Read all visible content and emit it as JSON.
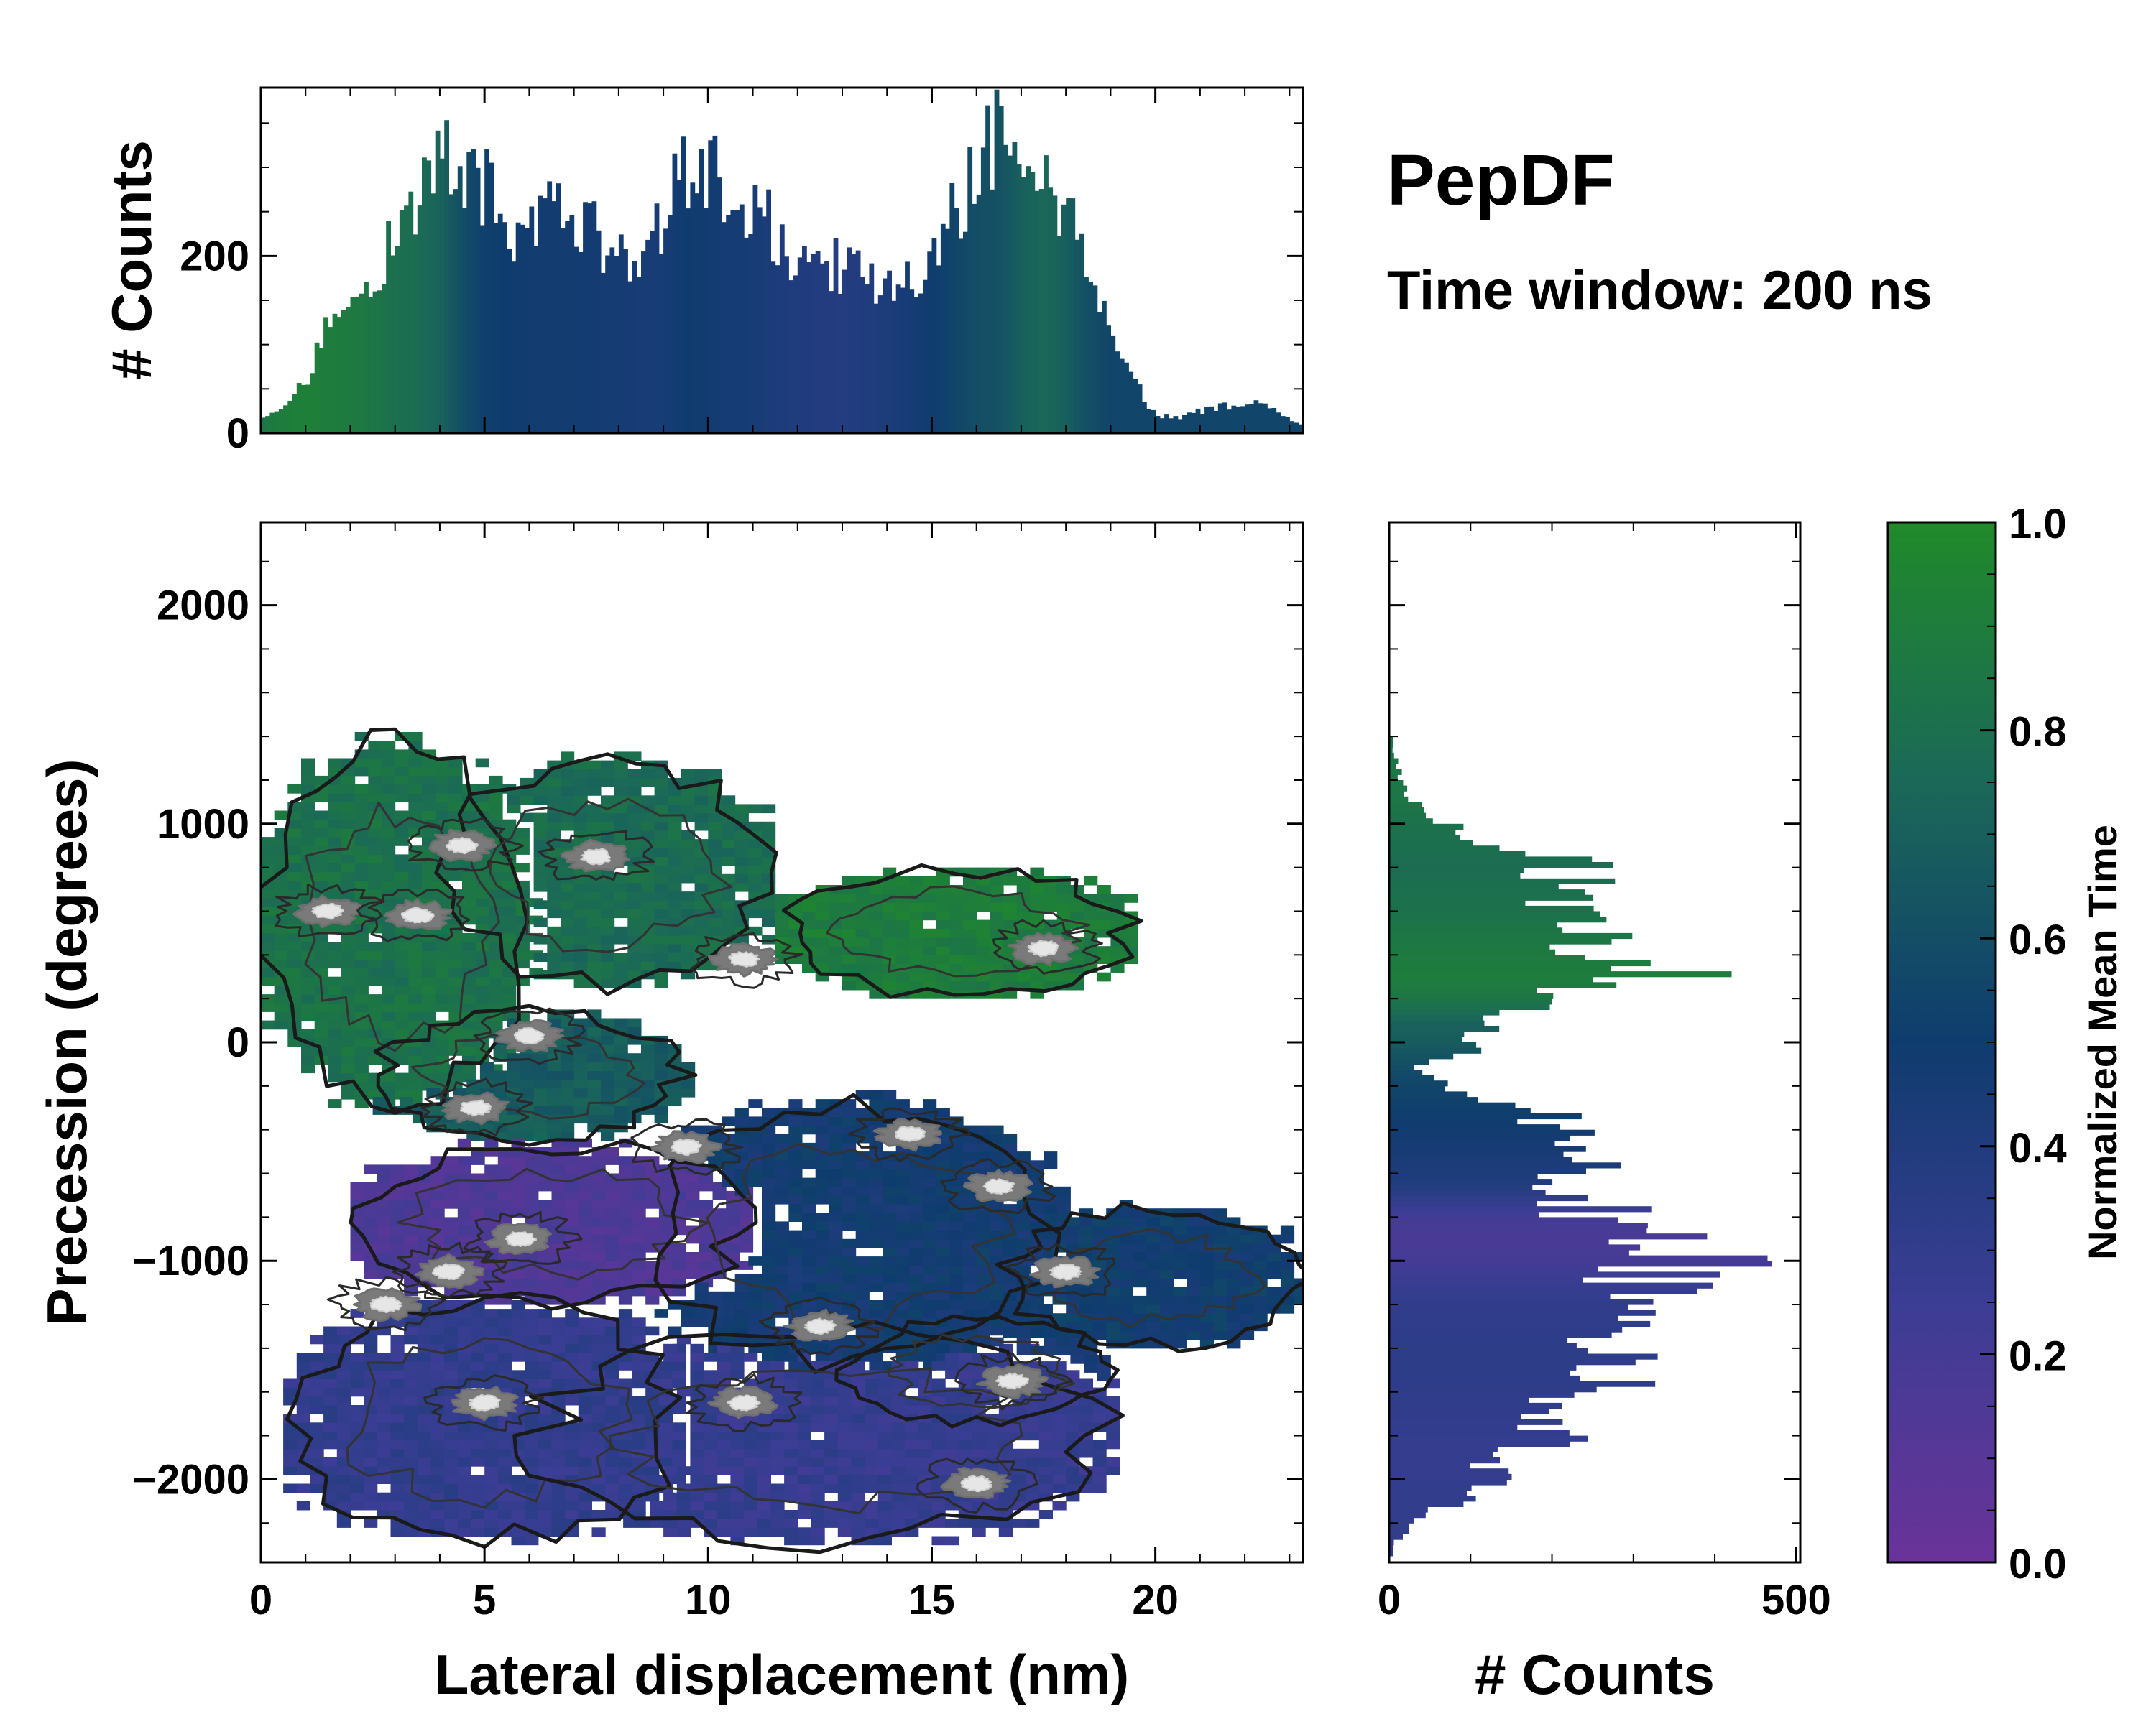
{
  "title": "PepDF",
  "subtitle": "Time window: 200 ns",
  "colors": {
    "low": "#6a3399",
    "mid_low": "#2e3a86",
    "mid": "#0f3c6e",
    "mid_high": "#1b6858",
    "high": "#208a2a",
    "contour": "#1a1a1a"
  },
  "chart_data": [
    {
      "id": "top-histogram",
      "type": "bar",
      "title": "",
      "xlabel": "",
      "ylabel": "# Counts",
      "xlim": [
        0,
        23.3
      ],
      "ylim": [
        0,
        390
      ],
      "yticks": [
        0,
        200
      ],
      "bin_width": 0.1,
      "colorscale": "Normalized Mean Time",
      "profile": [
        [
          0,
          15,
          0.85
        ],
        [
          0.5,
          30,
          0.9
        ],
        [
          1.0,
          60,
          0.92
        ],
        [
          1.5,
          120,
          0.9
        ],
        [
          2.0,
          160,
          0.88
        ],
        [
          2.5,
          180,
          0.85
        ],
        [
          3.0,
          230,
          0.8
        ],
        [
          3.5,
          270,
          0.78
        ],
        [
          4.0,
          310,
          0.72
        ],
        [
          4.5,
          305,
          0.6
        ],
        [
          5.0,
          280,
          0.52
        ],
        [
          5.5,
          230,
          0.5
        ],
        [
          6.0,
          240,
          0.48
        ],
        [
          7.0,
          245,
          0.48
        ],
        [
          8.0,
          200,
          0.46
        ],
        [
          8.5,
          195,
          0.45
        ],
        [
          9.0,
          240,
          0.45
        ],
        [
          9.5,
          310,
          0.5
        ],
        [
          10.0,
          290,
          0.48
        ],
        [
          11.0,
          260,
          0.45
        ],
        [
          12.0,
          200,
          0.4
        ],
        [
          13.0,
          190,
          0.38
        ],
        [
          14.0,
          170,
          0.42
        ],
        [
          14.5,
          170,
          0.45
        ],
        [
          15.0,
          190,
          0.5
        ],
        [
          15.5,
          250,
          0.55
        ],
        [
          16.0,
          300,
          0.6
        ],
        [
          16.5,
          335,
          0.62
        ],
        [
          17.0,
          320,
          0.7
        ],
        [
          17.5,
          290,
          0.75
        ],
        [
          18.0,
          250,
          0.7
        ],
        [
          18.5,
          200,
          0.6
        ],
        [
          19.0,
          100,
          0.55
        ],
        [
          19.5,
          60,
          0.55
        ],
        [
          20.0,
          20,
          0.55
        ],
        [
          20.5,
          18,
          0.55
        ],
        [
          21.0,
          25,
          0.55
        ],
        [
          21.5,
          30,
          0.55
        ],
        [
          22.0,
          35,
          0.55
        ],
        [
          22.5,
          30,
          0.55
        ],
        [
          23.2,
          10,
          0.55
        ]
      ]
    },
    {
      "id": "main-map",
      "type": "heatmap",
      "title": "",
      "xlabel": "Lateral displacement (nm)",
      "ylabel": "Precession (degrees)",
      "xlim": [
        0,
        23.3
      ],
      "ylim": [
        -2380,
        2380
      ],
      "xticks": [
        0,
        5,
        10,
        15,
        20
      ],
      "yticks": [
        -2000,
        -1000,
        0,
        1000,
        2000
      ],
      "colorscale": "Normalized Mean Time",
      "contours": true,
      "regions": [
        {
          "name": "upper-left-cluster",
          "x_range": [
            0,
            6.0
          ],
          "y_range": [
            -300,
            1400
          ],
          "time": 0.82
        },
        {
          "name": "upper-band",
          "x_range": [
            4.0,
            11.5
          ],
          "y_range": [
            250,
            1300
          ],
          "time": 0.78
        },
        {
          "name": "upper-right-arm",
          "x_range": [
            11.5,
            19.5
          ],
          "y_range": [
            200,
            800
          ],
          "time": 0.9
        },
        {
          "name": "center-teal",
          "x_range": [
            2.5,
            9.5
          ],
          "y_range": [
            -450,
            150
          ],
          "time": 0.68
        },
        {
          "name": "middle-purple",
          "x_range": [
            2.0,
            11.0
          ],
          "y_range": [
            -1200,
            -450
          ],
          "time": 0.15
        },
        {
          "name": "middle-blue",
          "x_range": [
            8.5,
            18.0
          ],
          "y_range": [
            -1500,
            -250
          ],
          "time": 0.48
        },
        {
          "name": "right-blue",
          "x_range": [
            16.5,
            23.3
          ],
          "y_range": [
            -1400,
            -750
          ],
          "time": 0.5
        },
        {
          "name": "lower-left-indigo",
          "x_range": [
            0.5,
            9.5
          ],
          "y_range": [
            -2300,
            -1150
          ],
          "time": 0.3
        },
        {
          "name": "lower-center",
          "x_range": [
            6.0,
            19.0
          ],
          "y_range": [
            -2300,
            -1300
          ],
          "time": 0.28
        },
        {
          "name": "lower-right-blue",
          "x_range": [
            13.0,
            19.0
          ],
          "y_range": [
            -1750,
            -1250
          ],
          "time": 0.45
        }
      ],
      "hotspots": [
        [
          1.5,
          600
        ],
        [
          3.5,
          580
        ],
        [
          4.5,
          900
        ],
        [
          7.5,
          850
        ],
        [
          10.8,
          380
        ],
        [
          17.5,
          430
        ],
        [
          6.0,
          30
        ],
        [
          4.8,
          -300
        ],
        [
          9.5,
          -480
        ],
        [
          14.5,
          -420
        ],
        [
          16.5,
          -660
        ],
        [
          5.8,
          -900
        ],
        [
          4.2,
          -1050
        ],
        [
          18.0,
          -1050
        ],
        [
          16.8,
          -1550
        ],
        [
          5.0,
          -1650
        ],
        [
          10.8,
          -1650
        ],
        [
          16.0,
          -2020
        ],
        [
          2.8,
          -1200
        ],
        [
          12.5,
          -1300
        ]
      ]
    },
    {
      "id": "right-histogram",
      "type": "bar",
      "orientation": "horizontal",
      "title": "",
      "xlabel": "# Counts",
      "ylabel": "",
      "xlim": [
        0,
        505
      ],
      "ylim": [
        -2380,
        2380
      ],
      "xticks": [
        0,
        500
      ],
      "bin_width": 25,
      "colorscale": "Normalized Mean Time",
      "profile": [
        [
          -2300,
          5,
          0.3
        ],
        [
          -2200,
          30,
          0.3
        ],
        [
          -2050,
          100,
          0.3
        ],
        [
          -1900,
          150,
          0.28
        ],
        [
          -1750,
          220,
          0.3
        ],
        [
          -1600,
          250,
          0.32
        ],
        [
          -1450,
          280,
          0.33
        ],
        [
          -1300,
          260,
          0.32
        ],
        [
          -1150,
          300,
          0.3
        ],
        [
          -1000,
          380,
          0.2
        ],
        [
          -900,
          330,
          0.18
        ],
        [
          -800,
          260,
          0.2
        ],
        [
          -650,
          220,
          0.4
        ],
        [
          -500,
          230,
          0.45
        ],
        [
          -350,
          200,
          0.5
        ],
        [
          -200,
          70,
          0.55
        ],
        [
          -100,
          40,
          0.6
        ],
        [
          0,
          130,
          0.68
        ],
        [
          100,
          100,
          0.72
        ],
        [
          200,
          200,
          0.85
        ],
        [
          300,
          340,
          0.9
        ],
        [
          400,
          250,
          0.88
        ],
        [
          500,
          250,
          0.85
        ],
        [
          600,
          200,
          0.82
        ],
        [
          700,
          210,
          0.8
        ],
        [
          800,
          230,
          0.78
        ],
        [
          900,
          130,
          0.8
        ],
        [
          1000,
          70,
          0.82
        ],
        [
          1100,
          30,
          0.85
        ],
        [
          1200,
          15,
          0.85
        ],
        [
          1350,
          5,
          0.85
        ]
      ]
    }
  ],
  "colorbar": {
    "label": "Normalized Mean Time",
    "min": 0.0,
    "max": 1.0,
    "ticks": [
      "0.0",
      "0.2",
      "0.4",
      "0.6",
      "0.8",
      "1.0"
    ]
  }
}
